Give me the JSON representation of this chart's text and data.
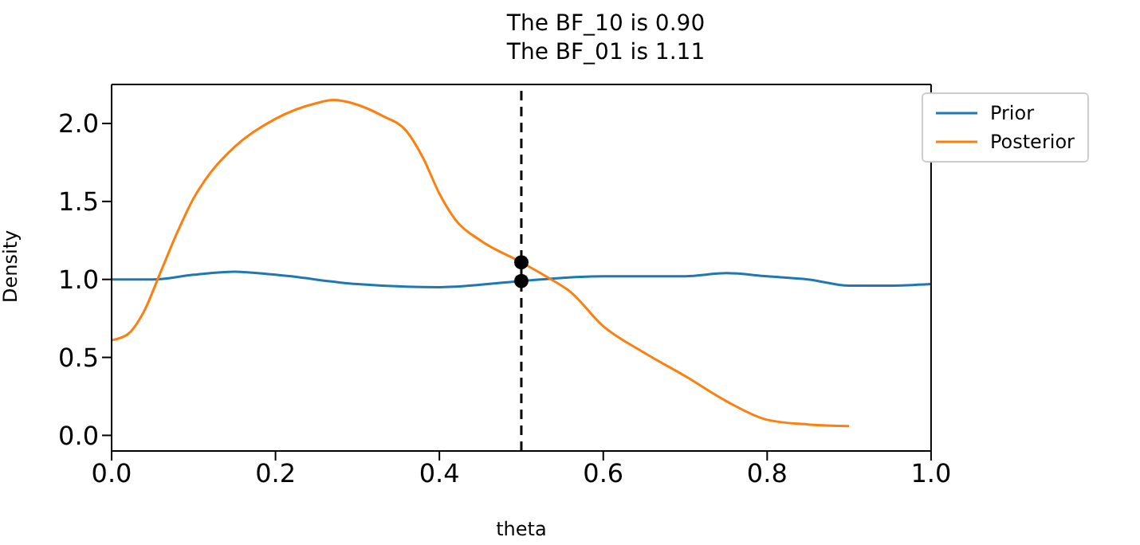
{
  "chart_data": {
    "type": "line",
    "title": "The BF_10 is 0.90\nThe BF_01 is 1.11",
    "xlabel": "theta",
    "ylabel": "Density",
    "xlim": [
      0,
      1
    ],
    "xticks": [
      {
        "value": 0,
        "label": "0.0"
      },
      {
        "value": 0.2,
        "label": "0.2"
      },
      {
        "value": 0.4,
        "label": "0.4"
      },
      {
        "value": 0.6,
        "label": "0.6"
      },
      {
        "value": 0.8,
        "label": "0.8"
      },
      {
        "value": 1,
        "label": "1.0"
      }
    ],
    "ylim": [
      -0.1,
      2.25
    ],
    "yticks": [
      {
        "value": 0,
        "label": "0.0"
      },
      {
        "value": 0.5,
        "label": "0.5"
      },
      {
        "value": 1,
        "label": "1.0"
      },
      {
        "value": 1.5,
        "label": "1.5"
      },
      {
        "value": 2,
        "label": "2.0"
      }
    ],
    "legend": "top right",
    "grid": false,
    "marker": "none",
    "ref_lines": [
      {
        "axis": "x",
        "value": 0.5,
        "color": "#000000",
        "line_style": "dashed"
      }
    ],
    "series": [
      {
        "name": "Prior",
        "color": "#1f77b4",
        "x": [
          0,
          0.05,
          0.1,
          0.15,
          0.2,
          0.3,
          0.4,
          0.5,
          0.55,
          0.6,
          0.7,
          0.75,
          0.8,
          0.85,
          0.9,
          0.95,
          1
        ],
        "values": [
          1,
          1,
          1.03,
          1.05,
          1.03,
          0.97,
          0.95,
          0.99,
          1.01,
          1.02,
          1.02,
          1.04,
          1.02,
          1,
          0.96,
          0.96,
          0.97
        ]
      },
      {
        "name": "Posterior",
        "color": "#ff7f0e",
        "x": [
          0,
          0.02,
          0.04,
          0.06,
          0.08,
          0.1,
          0.12,
          0.15,
          0.2,
          0.25,
          0.27,
          0.3,
          0.33,
          0.36,
          0.38,
          0.4,
          0.42,
          0.45,
          0.5,
          0.53,
          0.56,
          0.6,
          0.65,
          0.7,
          0.75,
          0.8,
          0.85,
          0.9
        ],
        "values": [
          0.61,
          0.65,
          0.8,
          1.05,
          1.3,
          1.52,
          1.68,
          1.85,
          2.03,
          2.13,
          2.15,
          2.12,
          2.05,
          1.95,
          1.78,
          1.55,
          1.38,
          1.25,
          1.11,
          1.02,
          0.92,
          0.7,
          0.53,
          0.38,
          0.22,
          0.1,
          0.07,
          0.06
        ]
      },
      {
        "type": "scatter",
        "color": "#000000",
        "marker": "circle",
        "x": [
          0.5,
          0.5
        ],
        "values": [
          0.99,
          1.11
        ]
      }
    ]
  }
}
